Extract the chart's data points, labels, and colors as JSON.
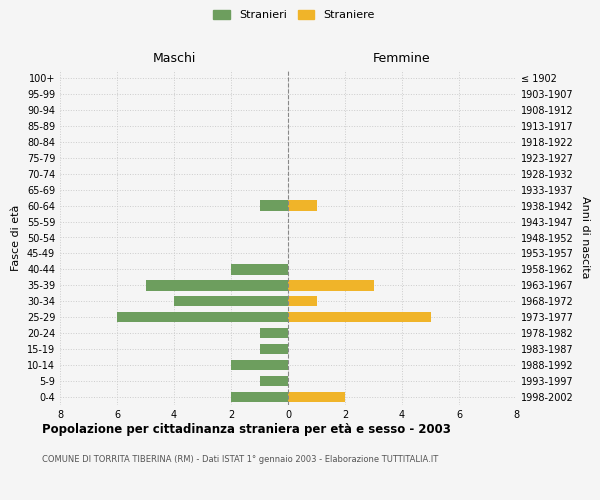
{
  "age_groups": [
    "0-4",
    "5-9",
    "10-14",
    "15-19",
    "20-24",
    "25-29",
    "30-34",
    "35-39",
    "40-44",
    "45-49",
    "50-54",
    "55-59",
    "60-64",
    "65-69",
    "70-74",
    "75-79",
    "80-84",
    "85-89",
    "90-94",
    "95-99",
    "100+"
  ],
  "birth_years": [
    "1998-2002",
    "1993-1997",
    "1988-1992",
    "1983-1987",
    "1978-1982",
    "1973-1977",
    "1968-1972",
    "1963-1967",
    "1958-1962",
    "1953-1957",
    "1948-1952",
    "1943-1947",
    "1938-1942",
    "1933-1937",
    "1928-1932",
    "1923-1927",
    "1918-1922",
    "1913-1917",
    "1908-1912",
    "1903-1907",
    "≤ 1902"
  ],
  "maschi": [
    2,
    1,
    2,
    1,
    1,
    6,
    4,
    5,
    2,
    0,
    0,
    0,
    1,
    0,
    0,
    0,
    0,
    0,
    0,
    0,
    0
  ],
  "femmine": [
    2,
    0,
    0,
    0,
    0,
    5,
    1,
    3,
    0,
    0,
    0,
    0,
    1,
    0,
    0,
    0,
    0,
    0,
    0,
    0,
    0
  ],
  "color_maschi": "#6d9e5e",
  "color_femmine": "#f0b429",
  "title": "Popolazione per cittadinanza straniera per età e sesso - 2003",
  "subtitle": "COMUNE DI TORRITA TIBERINA (RM) - Dati ISTAT 1° gennaio 2003 - Elaborazione TUTTITALIA.IT",
  "xlabel_left": "Maschi",
  "xlabel_right": "Femmine",
  "ylabel_left": "Fasce di età",
  "ylabel_right": "Anni di nascita",
  "legend_stranieri": "Stranieri",
  "legend_straniere": "Straniere",
  "xlim": 8,
  "background_color": "#f5f5f5",
  "grid_color": "#cccccc"
}
